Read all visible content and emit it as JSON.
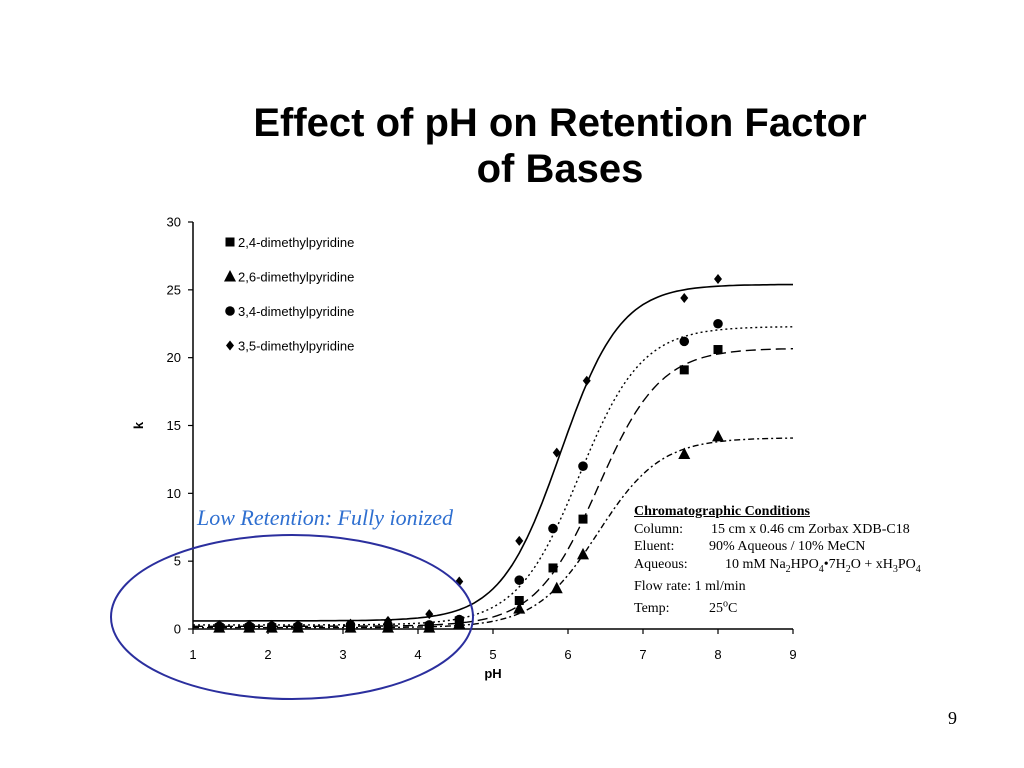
{
  "slide": {
    "title_line1": "Effect of pH on Retention Factor",
    "title_line2": "of Bases",
    "page_number": "9"
  },
  "annotation": {
    "text": "Low Retention: Fully ionized",
    "color": "#2e6fd0",
    "ellipse_color": "#2b2f9e"
  },
  "conditions": {
    "heading": "Chromatographic Conditions",
    "column_label": "Column:",
    "column_value": "15 cm x 0.46 cm Zorbax XDB-C18",
    "eluent_label": "Eluent:",
    "eluent_value": "90% Aqueous / 10% MeCN",
    "aqueous_label": "Aqueous:",
    "aqueous_parts": [
      "10 mM Na",
      "2",
      "HPO",
      "4",
      "•7H",
      "2",
      "O + xH",
      "3",
      "PO",
      "4"
    ],
    "flow_rate": "Flow rate: 1 ml/min",
    "temp_label": "Temp:",
    "temp_value_parts": [
      "25",
      "o",
      "C"
    ]
  },
  "chart_data": {
    "type": "scatter",
    "xlabel": "pH",
    "ylabel": "k",
    "xlim": [
      1,
      9
    ],
    "ylim": [
      0,
      30
    ],
    "xticks": [
      1,
      2,
      3,
      4,
      5,
      6,
      7,
      8,
      9
    ],
    "yticks": [
      0,
      5,
      10,
      15,
      20,
      25,
      30
    ],
    "grid": false,
    "legend_position": "top-left",
    "series": [
      {
        "name": "2,4-dimethylpyridine",
        "marker": "square",
        "line_style": "long-dash",
        "x": [
          1.35,
          1.75,
          2.05,
          2.4,
          3.1,
          3.6,
          4.15,
          4.55,
          5.35,
          5.8,
          6.2,
          7.55,
          8.0
        ],
        "y": [
          0.1,
          0.1,
          0.1,
          0.1,
          0.1,
          0.1,
          0.2,
          0.6,
          2.1,
          4.5,
          8.1,
          19.1,
          20.6
        ],
        "curve_y_low": 0.2,
        "curve_y_high": 20.7,
        "curve_midpoint_pH": 6.4,
        "curve_slope": 2.4
      },
      {
        "name": "2,6-dimethylpyridine",
        "marker": "triangle",
        "line_style": "dash-dot",
        "x": [
          1.35,
          1.75,
          2.05,
          2.4,
          3.1,
          3.6,
          4.15,
          4.55,
          5.35,
          5.85,
          6.2,
          7.55,
          8.0
        ],
        "y": [
          0.1,
          0.1,
          0.1,
          0.1,
          0.1,
          0.1,
          0.1,
          0.4,
          1.5,
          3.0,
          5.5,
          12.9,
          14.2
        ],
        "curve_y_low": 0.1,
        "curve_y_high": 14.1,
        "curve_midpoint_pH": 6.4,
        "curve_slope": 2.4
      },
      {
        "name": "3,4-dimethylpyridine",
        "marker": "circle",
        "line_style": "dotted",
        "x": [
          1.35,
          1.75,
          2.05,
          2.4,
          3.1,
          3.6,
          4.15,
          4.55,
          5.35,
          5.8,
          6.2,
          7.55,
          8.0
        ],
        "y": [
          0.2,
          0.2,
          0.2,
          0.2,
          0.3,
          0.3,
          0.3,
          0.7,
          3.6,
          7.4,
          12.0,
          21.2,
          22.5
        ],
        "curve_y_low": 0.3,
        "curve_y_high": 22.3,
        "curve_midpoint_pH": 6.15,
        "curve_slope": 2.4
      },
      {
        "name": "3,5-dimethylpyridine",
        "marker": "diamond",
        "line_style": "solid",
        "x": [
          1.35,
          1.75,
          2.05,
          2.4,
          3.1,
          3.6,
          4.15,
          4.55,
          5.35,
          5.85,
          6.25,
          7.55,
          8.0
        ],
        "y": [
          0.3,
          0.3,
          0.3,
          0.3,
          0.4,
          0.6,
          1.1,
          3.5,
          6.5,
          13.0,
          18.3,
          24.4,
          25.8
        ],
        "curve_y_low": 0.6,
        "curve_y_high": 25.4,
        "curve_midpoint_pH": 5.9,
        "curve_slope": 2.5
      }
    ]
  }
}
